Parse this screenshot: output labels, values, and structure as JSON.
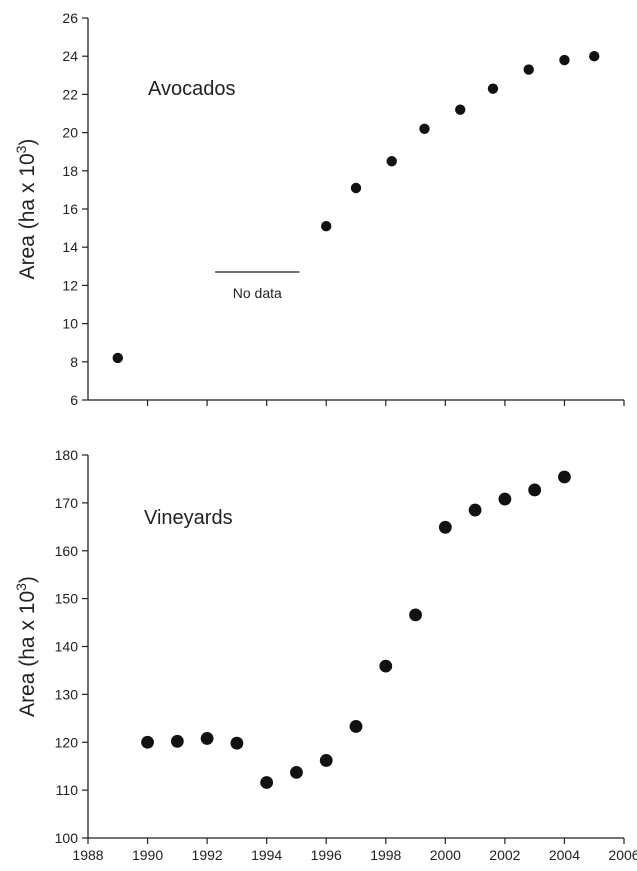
{
  "chart_data": [
    {
      "type": "scatter",
      "panel": "top",
      "annotation": "Avocados",
      "ylabel": "Area (ha x 10",
      "ylabel_sup": "3",
      "ylabel_close": ")",
      "xlabel": "",
      "xlim": [
        1988,
        2006
      ],
      "ylim": [
        6,
        26
      ],
      "x_ticks": [
        1990,
        1992,
        1994,
        1996,
        1998,
        2000,
        2002,
        2004,
        2006
      ],
      "x_tick_labels_shown": false,
      "y_ticks": [
        6,
        8,
        10,
        12,
        14,
        16,
        18,
        20,
        22,
        24,
        26
      ],
      "grid": false,
      "no_data_note": {
        "label": "No data",
        "x_range": [
          1992,
          1995
        ],
        "y": 12.7
      },
      "series": [
        {
          "x": [
            1989,
            1996,
            1997,
            1998.2,
            1999.3,
            2000.5,
            2001.6,
            2002.8,
            2004,
            2005
          ],
          "y": [
            8.2,
            15.1,
            17.1,
            18.5,
            20.2,
            21.2,
            22.3,
            23.3,
            23.8,
            24.0
          ]
        }
      ]
    },
    {
      "type": "scatter",
      "panel": "bottom",
      "annotation": "Vineyards",
      "ylabel": "Area (ha x 10",
      "ylabel_sup": "3",
      "ylabel_close": ")",
      "xlabel": "",
      "xlim": [
        1988,
        2006
      ],
      "ylim": [
        100,
        180
      ],
      "x_ticks": [
        1988,
        1990,
        1992,
        1994,
        1996,
        1998,
        2000,
        2002,
        2004,
        2006
      ],
      "x_tick_labels_shown": true,
      "y_ticks": [
        100,
        110,
        120,
        130,
        140,
        150,
        160,
        170,
        180
      ],
      "grid": false,
      "series": [
        {
          "x": [
            1990,
            1991,
            1992,
            1993,
            1994,
            1995,
            1996,
            1997,
            1998,
            1999,
            2000,
            2001,
            2002,
            2003,
            2004
          ],
          "y": [
            120.0,
            120.2,
            120.8,
            119.8,
            111.6,
            113.7,
            116.2,
            123.3,
            135.9,
            146.6,
            164.9,
            168.5,
            170.8,
            172.7,
            175.4
          ]
        }
      ]
    }
  ]
}
